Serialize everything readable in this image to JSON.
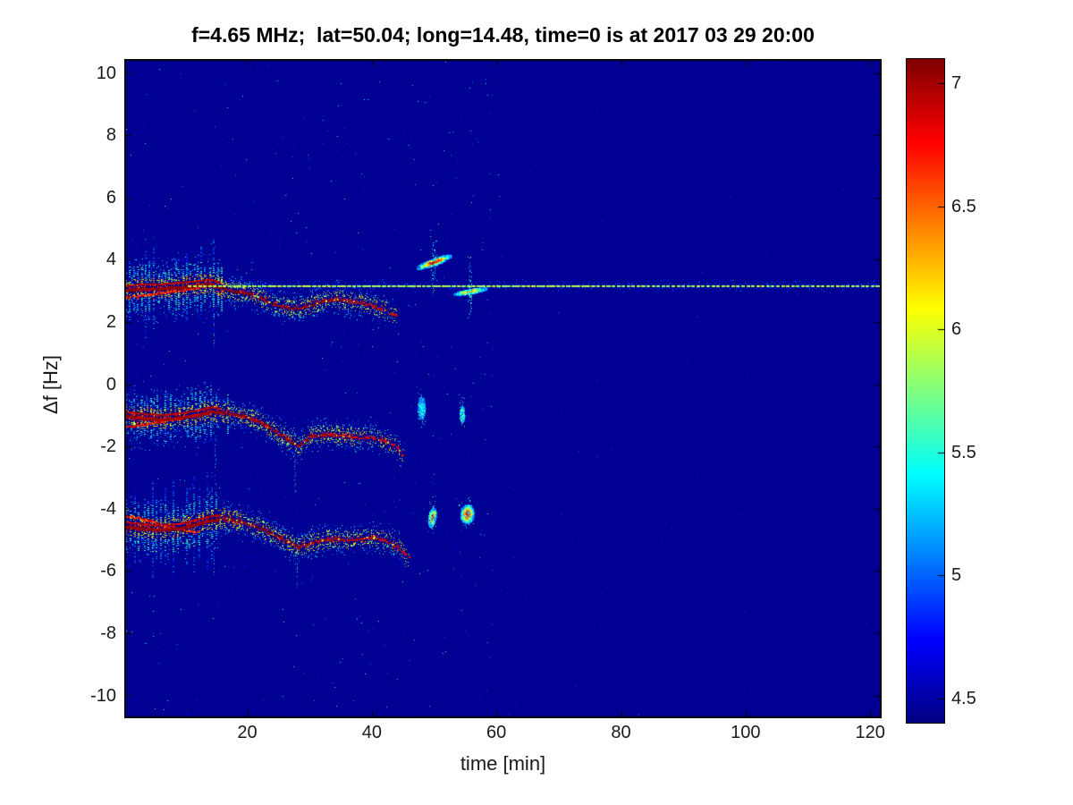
{
  "chart_data": {
    "type": "heatmap",
    "subtype": "doppler-spectrogram",
    "title": "f=4.65 MHz;  lat=50.04; long=14.48, time=0 is at 2017 03 29 20:00",
    "xlabel": "time [min]",
    "ylabel": "Δf [Hz]",
    "xlim": [
      0.4,
      121.7
    ],
    "ylim": [
      -10.7,
      10.42
    ],
    "x_ticks": [
      20,
      40,
      60,
      80,
      100,
      120
    ],
    "y_ticks": [
      -10,
      -8,
      -6,
      -4,
      -2,
      0,
      2,
      4,
      6,
      8,
      10
    ],
    "grid": false,
    "legend": null,
    "colormap": "jet",
    "colorbar": {
      "min": 4.4,
      "max": 7.1,
      "ticks": [
        4.5,
        5,
        5.5,
        6,
        6.5,
        7
      ],
      "position": "right"
    },
    "background_value": 4.45,
    "direct_line": {
      "y": 3.17,
      "t_start": 10.5,
      "t_end": 121.7,
      "value": 5.8,
      "style": "dashed"
    },
    "traces": [
      {
        "name": "doppler-mode-upper",
        "dense_until": 15.5,
        "fade_from": 36,
        "end": 44,
        "core_value": 7.05,
        "dense_halfwidth": 1.5,
        "ridge": [
          [
            0.4,
            3.05
          ],
          [
            3,
            3.1
          ],
          [
            6,
            3.1
          ],
          [
            9,
            3.15
          ],
          [
            12,
            3.2
          ],
          [
            14,
            3.25
          ],
          [
            16,
            3.1
          ],
          [
            18,
            3.0
          ],
          [
            20,
            2.95
          ],
          [
            22,
            2.8
          ],
          [
            24,
            2.6
          ],
          [
            26,
            2.5
          ],
          [
            28,
            2.45
          ],
          [
            30,
            2.55
          ],
          [
            32,
            2.7
          ],
          [
            34,
            2.75
          ],
          [
            36,
            2.7
          ],
          [
            38,
            2.65
          ],
          [
            40,
            2.55
          ],
          [
            42,
            2.4
          ],
          [
            44,
            2.2
          ]
        ],
        "secondary": [
          [
            0.4,
            2.8
          ],
          [
            4,
            2.9
          ],
          [
            8,
            3.0
          ],
          [
            12,
            3.12
          ],
          [
            14,
            3.2
          ]
        ]
      },
      {
        "name": "doppler-mode-middle",
        "dense_until": 15.5,
        "fade_from": 34,
        "end": 45,
        "core_value": 7.0,
        "dense_halfwidth": 1.1,
        "ridge": [
          [
            0.4,
            -1.0
          ],
          [
            3,
            -1.05
          ],
          [
            6,
            -1.1
          ],
          [
            9,
            -1.05
          ],
          [
            12,
            -0.95
          ],
          [
            14,
            -0.85
          ],
          [
            16,
            -0.9
          ],
          [
            18,
            -0.95
          ],
          [
            20,
            -1.05
          ],
          [
            22,
            -1.2
          ],
          [
            24,
            -1.45
          ],
          [
            26,
            -1.7
          ],
          [
            28,
            -1.95
          ],
          [
            29,
            -1.85
          ],
          [
            30,
            -1.65
          ],
          [
            32,
            -1.6
          ],
          [
            34,
            -1.6
          ],
          [
            36,
            -1.65
          ],
          [
            38,
            -1.7
          ],
          [
            40,
            -1.7
          ],
          [
            42,
            -1.8
          ],
          [
            44,
            -2.0
          ],
          [
            45,
            -2.3
          ]
        ],
        "secondary": [
          [
            0.4,
            -1.35
          ],
          [
            4,
            -1.25
          ],
          [
            8,
            -1.1
          ],
          [
            12,
            -0.95
          ]
        ]
      },
      {
        "name": "doppler-mode-lower",
        "dense_until": 15.5,
        "fade_from": 36,
        "end": 46,
        "core_value": 7.05,
        "dense_halfwidth": 1.3,
        "ridge": [
          [
            0.4,
            -4.55
          ],
          [
            3,
            -4.6
          ],
          [
            6,
            -4.65
          ],
          [
            9,
            -4.6
          ],
          [
            12,
            -4.45
          ],
          [
            14,
            -4.35
          ],
          [
            16,
            -4.3
          ],
          [
            18,
            -4.35
          ],
          [
            20,
            -4.45
          ],
          [
            22,
            -4.6
          ],
          [
            24,
            -4.8
          ],
          [
            26,
            -5.0
          ],
          [
            28,
            -5.2
          ],
          [
            30,
            -5.1
          ],
          [
            32,
            -5.0
          ],
          [
            34,
            -4.95
          ],
          [
            36,
            -5.0
          ],
          [
            38,
            -4.95
          ],
          [
            40,
            -4.9
          ],
          [
            42,
            -5.0
          ],
          [
            44,
            -5.2
          ],
          [
            46,
            -5.55
          ]
        ],
        "secondary": [
          [
            0.4,
            -4.2
          ],
          [
            4,
            -4.35
          ],
          [
            8,
            -4.6
          ],
          [
            12,
            -4.75
          ]
        ]
      }
    ],
    "spikes": [
      {
        "t": 14.6,
        "y_from": 2.3,
        "y_to": 1.0
      },
      {
        "t": 14.8,
        "y_from": -1.6,
        "y_to": -3.2
      },
      {
        "t": 27.6,
        "y_from": -2.1,
        "y_to": -3.4
      },
      {
        "t": 14.6,
        "y_from": -5.0,
        "y_to": -6.1
      },
      {
        "t": 28.0,
        "y_from": -5.4,
        "y_to": -6.5
      }
    ],
    "blobs": [
      {
        "name": "echo-blob-upper-1",
        "t": 49.9,
        "y": 3.95,
        "rt": 0.5,
        "ry": 0.6,
        "angle_deg": 70,
        "value": 7.0
      },
      {
        "name": "echo-blob-upper-2",
        "t": 55.7,
        "y": 3.0,
        "rt": 0.35,
        "ry": 0.55,
        "angle_deg": 80,
        "value": 6.5
      },
      {
        "name": "echo-blob-mid-1",
        "t": 47.9,
        "y": -0.75,
        "rt": 0.55,
        "ry": 0.35,
        "angle_deg": 0,
        "value": 5.6
      },
      {
        "name": "echo-blob-mid-2",
        "t": 54.4,
        "y": -0.95,
        "rt": 0.35,
        "ry": 0.25,
        "angle_deg": 0,
        "value": 6.2
      },
      {
        "name": "echo-blob-low-1",
        "t": 49.6,
        "y": -4.25,
        "rt": 0.55,
        "ry": 0.3,
        "angle_deg": 10,
        "value": 6.9
      },
      {
        "name": "echo-blob-low-2",
        "t": 55.2,
        "y": -4.15,
        "rt": 1.05,
        "ry": 0.3,
        "angle_deg": 5,
        "value": 7.05
      }
    ]
  }
}
